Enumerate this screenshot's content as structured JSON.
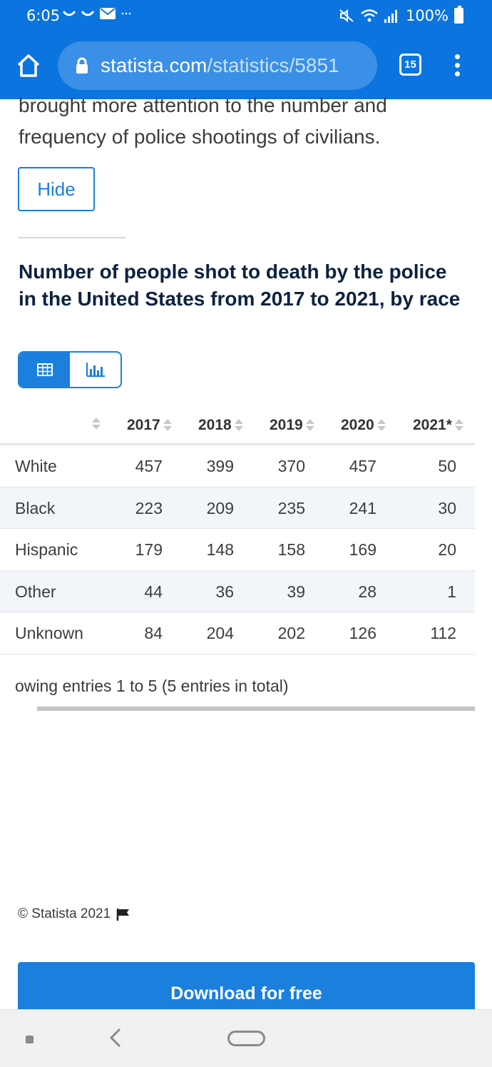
{
  "status_bar": {
    "time": "6:05",
    "battery": "100%"
  },
  "browser": {
    "url_host": "statista.com",
    "url_path": "/statistics/5851",
    "tab_count": "15"
  },
  "intro_text": "brought more attention to the number and frequency of police shootings of civilians.",
  "hide_label": "Hide",
  "chart_title": "Number of people shot to death by the police in the United States from 2017 to 2021, by race",
  "view_toggle": {
    "selected": "table"
  },
  "chart_data": {
    "type": "table",
    "columns": [
      "2017",
      "2018",
      "2019",
      "2020",
      "2021*"
    ],
    "rows": [
      {
        "label": "White",
        "values": [
          "457",
          "399",
          "370",
          "457",
          "50"
        ]
      },
      {
        "label": "Black",
        "values": [
          "223",
          "209",
          "235",
          "241",
          "30"
        ]
      },
      {
        "label": "Hispanic",
        "values": [
          "179",
          "148",
          "158",
          "169",
          "20"
        ]
      },
      {
        "label": "Other",
        "values": [
          "44",
          "36",
          "39",
          "28",
          "1"
        ]
      },
      {
        "label": "Unknown",
        "values": [
          "84",
          "204",
          "202",
          "126",
          "112"
        ]
      }
    ]
  },
  "entries_text": "owing entries 1 to 5 (5 entries in total)",
  "copyright": "© Statista 2021",
  "download_label": "Download for free"
}
